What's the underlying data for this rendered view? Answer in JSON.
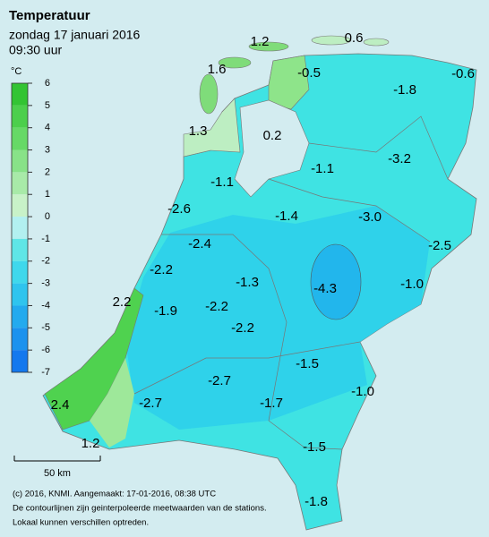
{
  "header": {
    "title": "Temperatuur",
    "date": "zondag 17 januari 2016",
    "time": "09:30 uur"
  },
  "legend": {
    "unit": "°C",
    "ticks": [
      6,
      5,
      4,
      3,
      2,
      1,
      0,
      -1,
      -2,
      -3,
      -4,
      -5,
      -6,
      -7
    ]
  },
  "stations": [
    "1.2",
    "0.6",
    "1.6",
    "-0.5",
    "-0.6",
    "-1.8",
    "1.3",
    "0.2",
    "-1.1",
    "-3.2",
    "-1.1",
    "-2.6",
    "-1.4",
    "-3.0",
    "-2.4",
    "-2.5",
    "-2.2",
    "-1.3",
    "-4.3",
    "-1.0",
    "2.2",
    "-1.9",
    "-2.2",
    "-2.2",
    "-1.5",
    "-2.7",
    "-1.0",
    "2.4",
    "-2.7",
    "-1.7",
    "1.2",
    "-1.5",
    "-1.8"
  ],
  "scale": {
    "label": "50 km"
  },
  "footer": [
    "(c) 2016, KNMI. Aangemaakt: 17-01-2016, 08:38 UTC",
    "De contourlijnen zijn geinterpoleerde meetwaarden van de stations.",
    "Lokaal kunnen verschillen optreden."
  ]
}
